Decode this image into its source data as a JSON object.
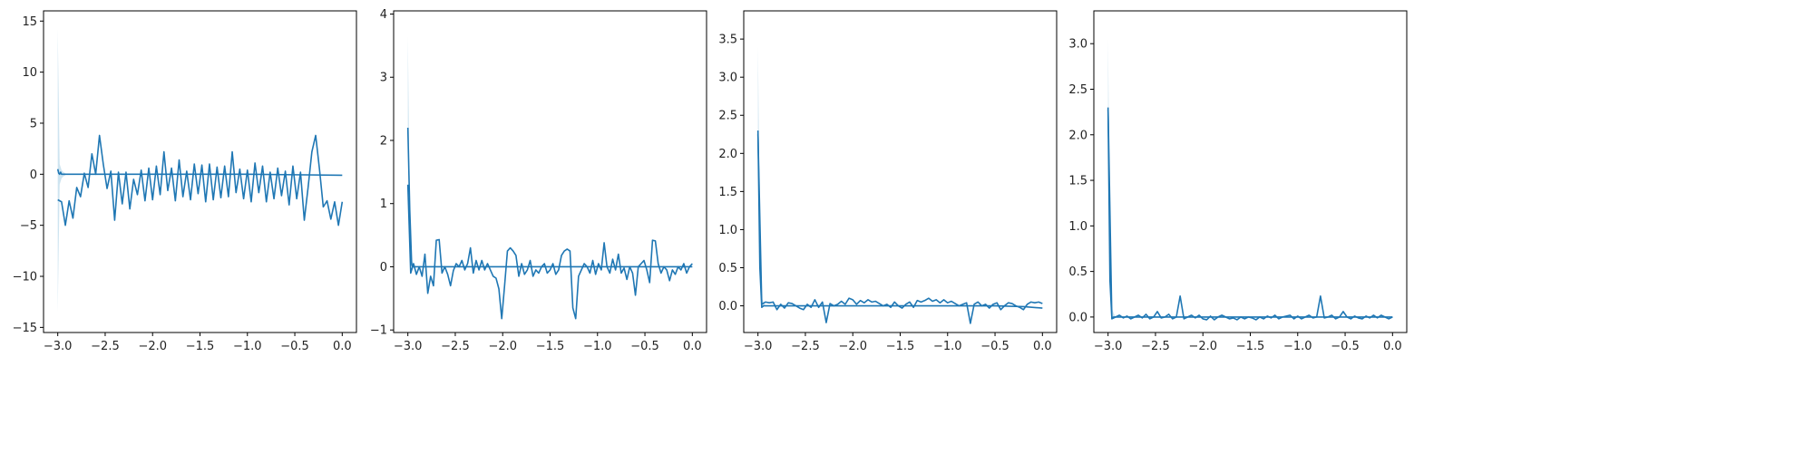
{
  "chart_data": [
    {
      "type": "line",
      "xlim": [
        -3.15,
        0.15
      ],
      "ylim": [
        -15.5,
        16.0
      ],
      "xticks": [
        -3.0,
        -2.5,
        -2.0,
        -1.5,
        -1.0,
        -0.5,
        0.0
      ],
      "xtick_labels": [
        "−3.0",
        "−2.5",
        "−2.0",
        "−1.5",
        "−1.0",
        "−0.5",
        "0.0"
      ],
      "yticks": [
        -15,
        -10,
        -5,
        0,
        5,
        10,
        15
      ],
      "ytick_labels": [
        "−15",
        "−10",
        "−5",
        "0",
        "5",
        "10",
        "15"
      ],
      "grid": false,
      "colors": {
        "line": "#1f77b4",
        "band": "#a6cee3"
      },
      "band": {
        "x": [
          -3.0,
          -2.98,
          -2.96,
          -2.94,
          -2.92
        ],
        "lower": [
          -13.5,
          -1.0,
          -0.4,
          -0.2,
          -0.1
        ],
        "upper": [
          14.2,
          1.0,
          0.4,
          0.2,
          0.1
        ]
      },
      "series": [
        {
          "x": [
            -3.0,
            -2.99,
            -2.98,
            -2.97,
            -2.96,
            -2.95,
            -2.9,
            -2.8,
            -2.7,
            -2.5,
            -2.0,
            -1.5,
            -1.0,
            -0.5,
            0.0
          ],
          "y": [
            0.5,
            0.1,
            0.0,
            0.2,
            0.0,
            0.0,
            0.0,
            0.0,
            0.0,
            0.0,
            0.0,
            0.0,
            0.0,
            -0.05,
            -0.1
          ]
        },
        {
          "x": [
            -3.0,
            -2.96,
            -2.92,
            -2.88,
            -2.84,
            -2.8,
            -2.76,
            -2.72,
            -2.68,
            -2.64,
            -2.6,
            -2.56,
            -2.52,
            -2.48,
            -2.44,
            -2.4,
            -2.36,
            -2.32,
            -2.28,
            -2.24,
            -2.2,
            -2.16,
            -2.12,
            -2.08,
            -2.04,
            -2.0,
            -1.96,
            -1.92,
            -1.88,
            -1.84,
            -1.8,
            -1.76,
            -1.72,
            -1.68,
            -1.64,
            -1.6,
            -1.56,
            -1.52,
            -1.48,
            -1.44,
            -1.4,
            -1.36,
            -1.32,
            -1.28,
            -1.24,
            -1.2,
            -1.16,
            -1.12,
            -1.08,
            -1.04,
            -1.0,
            -0.96,
            -0.92,
            -0.88,
            -0.84,
            -0.8,
            -0.76,
            -0.72,
            -0.68,
            -0.64,
            -0.6,
            -0.56,
            -0.52,
            -0.48,
            -0.44,
            -0.4,
            -0.36,
            -0.32,
            -0.28,
            -0.24,
            -0.2,
            -0.16,
            -0.12,
            -0.08,
            -0.04,
            0.0
          ],
          "y": [
            -2.5,
            -2.7,
            -5.0,
            -2.6,
            -4.3,
            -1.3,
            -2.2,
            0.1,
            -1.3,
            2.0,
            0.0,
            3.8,
            1.0,
            -1.4,
            0.3,
            -4.5,
            0.2,
            -2.9,
            0.2,
            -3.4,
            -0.5,
            -2.0,
            0.4,
            -2.6,
            0.6,
            -2.5,
            0.8,
            -2.0,
            2.2,
            -1.6,
            0.6,
            -2.6,
            1.4,
            -2.2,
            0.3,
            -2.5,
            1.0,
            -1.9,
            0.9,
            -2.7,
            1.0,
            -2.5,
            0.7,
            -2.3,
            0.8,
            -2.2,
            2.2,
            -1.8,
            0.5,
            -2.4,
            0.4,
            -2.7,
            1.1,
            -1.8,
            0.8,
            -2.7,
            0.2,
            -2.4,
            0.6,
            -2.1,
            0.3,
            -3.0,
            0.8,
            -2.4,
            0.2,
            -4.5,
            -1.3,
            2.2,
            3.8,
            0.5,
            -3.2,
            -2.6,
            -4.4,
            -2.7,
            -5.0,
            -2.7
          ]
        }
      ]
    },
    {
      "type": "line",
      "xlim": [
        -3.15,
        0.15
      ],
      "ylim": [
        -1.04,
        4.05
      ],
      "xticks": [
        -3.0,
        -2.5,
        -2.0,
        -1.5,
        -1.0,
        -0.5,
        0.0
      ],
      "xtick_labels": [
        "−3.0",
        "−2.5",
        "−2.0",
        "−1.5",
        "−1.0",
        "−0.5",
        "0.0"
      ],
      "yticks": [
        -1,
        0,
        1,
        2,
        3,
        4
      ],
      "ytick_labels": [
        "−1",
        "0",
        "1",
        "2",
        "3",
        "4"
      ],
      "grid": false,
      "colors": {
        "line": "#1f77b4",
        "band": "#a6cee3"
      },
      "band": {
        "x": [
          -3.0,
          -2.98,
          -2.96,
          -2.94,
          -2.92
        ],
        "lower": [
          1.9,
          0.5,
          0.05,
          0.0,
          0.0
        ],
        "upper": [
          3.65,
          1.0,
          0.1,
          0.05,
          0.0
        ]
      },
      "series": [
        {
          "x": [
            -3.0,
            -2.98,
            -2.96,
            -2.95,
            -2.9,
            -2.8,
            -2.5,
            -2.0,
            -1.5,
            -1.0,
            -0.5,
            0.0
          ],
          "y": [
            2.2,
            0.9,
            0.05,
            0.0,
            0.0,
            0.0,
            0.0,
            0.0,
            0.0,
            0.0,
            0.0,
            0.0
          ]
        },
        {
          "x": [
            -3.0,
            -2.97,
            -2.94,
            -2.91,
            -2.88,
            -2.85,
            -2.82,
            -2.79,
            -2.76,
            -2.73,
            -2.7,
            -2.67,
            -2.64,
            -2.61,
            -2.58,
            -2.55,
            -2.52,
            -2.49,
            -2.46,
            -2.43,
            -2.4,
            -2.37,
            -2.34,
            -2.31,
            -2.28,
            -2.25,
            -2.22,
            -2.19,
            -2.16,
            -2.13,
            -2.1,
            -2.07,
            -2.04,
            -2.01,
            -1.98,
            -1.95,
            -1.92,
            -1.89,
            -1.86,
            -1.83,
            -1.8,
            -1.77,
            -1.74,
            -1.71,
            -1.68,
            -1.65,
            -1.62,
            -1.59,
            -1.56,
            -1.53,
            -1.5,
            -1.47,
            -1.44,
            -1.41,
            -1.38,
            -1.35,
            -1.32,
            -1.29,
            -1.26,
            -1.23,
            -1.2,
            -1.17,
            -1.14,
            -1.11,
            -1.08,
            -1.05,
            -1.02,
            -0.99,
            -0.96,
            -0.93,
            -0.9,
            -0.87,
            -0.84,
            -0.81,
            -0.78,
            -0.75,
            -0.72,
            -0.69,
            -0.66,
            -0.63,
            -0.6,
            -0.57,
            -0.54,
            -0.51,
            -0.48,
            -0.45,
            -0.42,
            -0.39,
            -0.36,
            -0.33,
            -0.3,
            -0.27,
            -0.24,
            -0.21,
            -0.18,
            -0.15,
            -0.12,
            -0.09,
            -0.06,
            -0.03,
            0.0
          ],
          "y": [
            1.3,
            -0.1,
            0.05,
            -0.12,
            0.0,
            -0.15,
            0.2,
            -0.42,
            -0.15,
            -0.3,
            0.42,
            0.43,
            -0.1,
            0.0,
            -0.12,
            -0.3,
            -0.06,
            0.05,
            0.0,
            0.1,
            -0.05,
            0.05,
            0.3,
            -0.1,
            0.1,
            -0.05,
            0.1,
            -0.05,
            0.05,
            -0.05,
            -0.15,
            -0.18,
            -0.35,
            -0.82,
            -0.3,
            0.25,
            0.3,
            0.25,
            0.18,
            -0.15,
            0.05,
            -0.12,
            -0.05,
            0.1,
            -0.15,
            -0.05,
            -0.1,
            0.0,
            0.05,
            -0.1,
            -0.05,
            0.05,
            -0.12,
            -0.05,
            0.18,
            0.25,
            0.28,
            0.25,
            -0.65,
            -0.82,
            -0.15,
            -0.05,
            0.05,
            0.0,
            -0.1,
            0.1,
            -0.12,
            0.05,
            -0.05,
            0.38,
            0.0,
            -0.1,
            0.12,
            -0.05,
            0.2,
            -0.1,
            -0.02,
            -0.2,
            0.0,
            -0.1,
            -0.45,
            0.0,
            0.05,
            0.1,
            -0.05,
            -0.25,
            0.42,
            0.41,
            0.05,
            -0.1,
            0.0,
            -0.05,
            -0.22,
            -0.05,
            -0.12,
            0.0,
            -0.05,
            0.05,
            -0.1,
            0.0,
            0.05
          ]
        }
      ]
    },
    {
      "type": "line",
      "xlim": [
        -3.15,
        0.15
      ],
      "ylim": [
        -0.35,
        3.87
      ],
      "xticks": [
        -3.0,
        -2.5,
        -2.0,
        -1.5,
        -1.0,
        -0.5,
        0.0
      ],
      "xtick_labels": [
        "−3.0",
        "−2.5",
        "−2.0",
        "−1.5",
        "−1.0",
        "−0.5",
        "0.0"
      ],
      "yticks": [
        0.0,
        0.5,
        1.0,
        1.5,
        2.0,
        2.5,
        3.0,
        3.5
      ],
      "ytick_labels": [
        "0.0",
        "0.5",
        "1.0",
        "1.5",
        "2.0",
        "2.5",
        "3.0",
        "3.5"
      ],
      "grid": false,
      "colors": {
        "line": "#1f77b4",
        "band": "#a6cee3"
      },
      "band": {
        "x": [
          -3.0,
          -2.98,
          -2.96,
          -2.94,
          -2.92
        ],
        "lower": [
          2.1,
          0.4,
          0.0,
          0.0,
          0.0
        ],
        "upper": [
          3.4,
          1.0,
          0.1,
          0.05,
          0.0
        ]
      },
      "series": [
        {
          "x": [
            -3.0,
            -2.98,
            -2.96,
            -2.94,
            -2.9,
            -2.8,
            -2.5,
            -2.0,
            -1.5,
            -1.0,
            -0.5,
            -0.2,
            0.0
          ],
          "y": [
            2.3,
            0.5,
            -0.02,
            0.0,
            0.0,
            0.0,
            0.0,
            0.0,
            0.0,
            0.0,
            0.0,
            -0.01,
            -0.03
          ]
        },
        {
          "x": [
            -3.0,
            -2.96,
            -2.92,
            -2.88,
            -2.84,
            -2.8,
            -2.76,
            -2.72,
            -2.68,
            -2.64,
            -2.6,
            -2.56,
            -2.52,
            -2.48,
            -2.44,
            -2.4,
            -2.36,
            -2.32,
            -2.28,
            -2.24,
            -2.2,
            -2.16,
            -2.12,
            -2.08,
            -2.04,
            -2.0,
            -1.96,
            -1.92,
            -1.88,
            -1.84,
            -1.8,
            -1.76,
            -1.72,
            -1.68,
            -1.64,
            -1.6,
            -1.56,
            -1.52,
            -1.48,
            -1.44,
            -1.4,
            -1.36,
            -1.32,
            -1.28,
            -1.24,
            -1.2,
            -1.16,
            -1.12,
            -1.08,
            -1.04,
            -1.0,
            -0.96,
            -0.92,
            -0.88,
            -0.84,
            -0.8,
            -0.76,
            -0.72,
            -0.68,
            -0.64,
            -0.6,
            -0.56,
            -0.52,
            -0.48,
            -0.44,
            -0.4,
            -0.36,
            -0.32,
            -0.28,
            -0.24,
            -0.2,
            -0.16,
            -0.12,
            -0.08,
            -0.04,
            0.0
          ],
          "y": [
            2.25,
            0.02,
            0.05,
            0.04,
            0.05,
            -0.05,
            0.02,
            -0.03,
            0.04,
            0.03,
            0.0,
            -0.03,
            -0.05,
            0.02,
            -0.02,
            0.08,
            -0.02,
            0.05,
            -0.22,
            0.03,
            0.0,
            0.02,
            0.06,
            0.02,
            0.1,
            0.08,
            0.02,
            0.07,
            0.04,
            0.08,
            0.05,
            0.06,
            0.03,
            0.0,
            0.02,
            -0.02,
            0.05,
            0.0,
            -0.03,
            0.02,
            0.05,
            -0.02,
            0.07,
            0.05,
            0.07,
            0.1,
            0.06,
            0.08,
            0.04,
            0.08,
            0.04,
            0.06,
            0.03,
            0.0,
            0.02,
            0.04,
            -0.23,
            0.02,
            0.05,
            0.0,
            0.02,
            -0.03,
            0.02,
            0.04,
            -0.05,
            0.0,
            0.04,
            0.03,
            0.0,
            -0.02,
            -0.05,
            0.02,
            0.05,
            0.04,
            0.05,
            0.03
          ]
        }
      ]
    },
    {
      "type": "line",
      "xlim": [
        -3.15,
        0.15
      ],
      "ylim": [
        -0.17,
        3.36
      ],
      "xticks": [
        -3.0,
        -2.5,
        -2.0,
        -1.5,
        -1.0,
        -0.5,
        0.0
      ],
      "xtick_labels": [
        "−3.0",
        "−2.5",
        "−2.0",
        "−1.5",
        "−1.0",
        "−0.5",
        "0.0"
      ],
      "yticks": [
        0.0,
        0.5,
        1.0,
        1.5,
        2.0,
        2.5,
        3.0
      ],
      "ytick_labels": [
        "0.0",
        "0.5",
        "1.0",
        "1.5",
        "2.0",
        "2.5",
        "3.0"
      ],
      "grid": false,
      "colors": {
        "line": "#1f77b4",
        "band": "#a6cee3"
      },
      "band": {
        "x": [
          -3.0,
          -2.98,
          -2.96,
          -2.94,
          -2.92
        ],
        "lower": [
          2.2,
          0.3,
          0.0,
          -0.02,
          0.0
        ],
        "upper": [
          3.05,
          0.9,
          0.1,
          0.04,
          0.0
        ]
      },
      "series": [
        {
          "x": [
            -3.0,
            -2.98,
            -2.96,
            -2.94,
            -2.9,
            -2.8,
            -2.5,
            -2.0,
            -1.5,
            -1.0,
            -0.5,
            0.0
          ],
          "y": [
            2.28,
            0.4,
            -0.01,
            0.0,
            0.0,
            0.0,
            0.0,
            0.0,
            0.0,
            0.0,
            0.0,
            0.0
          ]
        },
        {
          "x": [
            -3.0,
            -2.96,
            -2.92,
            -2.88,
            -2.84,
            -2.8,
            -2.76,
            -2.72,
            -2.68,
            -2.64,
            -2.6,
            -2.56,
            -2.52,
            -2.48,
            -2.44,
            -2.4,
            -2.36,
            -2.32,
            -2.28,
            -2.24,
            -2.2,
            -2.16,
            -2.12,
            -2.08,
            -2.04,
            -2.0,
            -1.96,
            -1.92,
            -1.88,
            -1.84,
            -1.8,
            -1.76,
            -1.72,
            -1.68,
            -1.64,
            -1.6,
            -1.56,
            -1.52,
            -1.48,
            -1.44,
            -1.4,
            -1.36,
            -1.32,
            -1.28,
            -1.24,
            -1.2,
            -1.16,
            -1.12,
            -1.08,
            -1.04,
            -1.0,
            -0.96,
            -0.92,
            -0.88,
            -0.84,
            -0.8,
            -0.76,
            -0.72,
            -0.68,
            -0.64,
            -0.6,
            -0.56,
            -0.52,
            -0.48,
            -0.44,
            -0.4,
            -0.36,
            -0.32,
            -0.28,
            -0.24,
            -0.2,
            -0.16,
            -0.12,
            -0.08,
            -0.04,
            0.0
          ],
          "y": [
            2.3,
            -0.02,
            0.0,
            0.02,
            -0.01,
            0.01,
            -0.02,
            0.0,
            0.02,
            -0.01,
            0.03,
            -0.02,
            0.0,
            0.06,
            -0.01,
            0.0,
            0.03,
            -0.02,
            0.0,
            0.23,
            -0.02,
            0.0,
            0.02,
            -0.01,
            0.02,
            -0.02,
            -0.03,
            0.01,
            -0.03,
            0.0,
            0.02,
            0.0,
            -0.02,
            -0.01,
            -0.03,
            0.0,
            -0.02,
            0.0,
            -0.01,
            -0.03,
            0.0,
            -0.02,
            0.01,
            -0.01,
            0.02,
            -0.02,
            0.0,
            0.01,
            0.02,
            -0.02,
            0.01,
            -0.02,
            0.0,
            0.02,
            -0.01,
            0.0,
            0.23,
            -0.01,
            0.0,
            0.02,
            -0.02,
            0.0,
            0.06,
            0.0,
            -0.02,
            0.01,
            -0.01,
            -0.02,
            0.01,
            -0.01,
            0.02,
            -0.01,
            0.02,
            0.0,
            -0.02,
            0.0
          ]
        }
      ]
    }
  ]
}
